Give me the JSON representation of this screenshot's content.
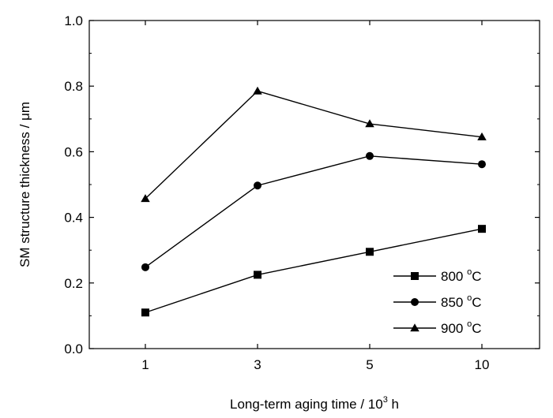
{
  "chart_data": {
    "type": "line",
    "title": "",
    "xlabel": {
      "prefix": "Long-term aging time / 10",
      "sup": "3",
      "suffix": " h"
    },
    "ylabel": "SM structure thickness / μm",
    "categories": [
      "1",
      "3",
      "5",
      "10"
    ],
    "ylim": [
      0.0,
      1.0
    ],
    "yticks": [
      "0.0",
      "0.2",
      "0.4",
      "0.6",
      "0.8",
      "1.0"
    ],
    "legend_position": "bottom-right",
    "series": [
      {
        "name": "800",
        "unit_sup": "o",
        "unit": "C",
        "marker": "square",
        "values": [
          0.11,
          0.225,
          0.295,
          0.365
        ]
      },
      {
        "name": "850",
        "unit_sup": "o",
        "unit": "C",
        "marker": "circle",
        "values": [
          0.248,
          0.497,
          0.587,
          0.562
        ]
      },
      {
        "name": "900",
        "unit_sup": "o",
        "unit": "C",
        "marker": "triangle",
        "values": [
          0.457,
          0.785,
          0.685,
          0.645
        ]
      }
    ]
  }
}
